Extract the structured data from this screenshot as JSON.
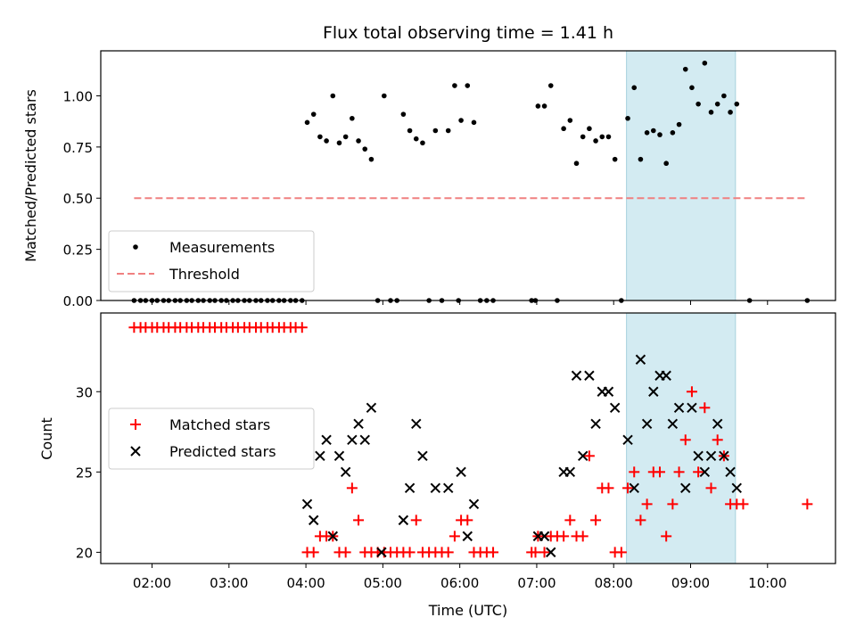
{
  "title": "Flux total observing time = 1.41 h",
  "chart_data": [
    {
      "type": "scatter",
      "ylabel": "Matched/Predicted stars",
      "xlim": [
        "01:20",
        "10:53"
      ],
      "ylim": [
        0,
        1.22
      ],
      "yticks": [
        "0.00",
        "0.25",
        "0.50",
        "0.75",
        "1.00"
      ],
      "highlight_span": [
        "08:10",
        "09:35"
      ],
      "highlight_color": "#d3ebf2",
      "legend": {
        "position": "lower-left",
        "entries": [
          "Measurements",
          "Threshold"
        ]
      },
      "series": [
        {
          "name": "Measurements",
          "color": "#000000",
          "marker": "dot",
          "points": [
            [
              "01:46",
              0
            ],
            [
              "01:51",
              0
            ],
            [
              "01:55",
              0
            ],
            [
              "02:00",
              0
            ],
            [
              "02:04",
              0
            ],
            [
              "02:09",
              0
            ],
            [
              "02:13",
              0
            ],
            [
              "02:18",
              0
            ],
            [
              "02:22",
              0
            ],
            [
              "02:27",
              0
            ],
            [
              "02:31",
              0
            ],
            [
              "02:36",
              0
            ],
            [
              "02:40",
              0
            ],
            [
              "02:45",
              0
            ],
            [
              "02:49",
              0
            ],
            [
              "02:54",
              0
            ],
            [
              "02:58",
              0
            ],
            [
              "03:03",
              0
            ],
            [
              "03:07",
              0
            ],
            [
              "03:12",
              0
            ],
            [
              "03:16",
              0
            ],
            [
              "03:21",
              0
            ],
            [
              "03:25",
              0
            ],
            [
              "03:30",
              0
            ],
            [
              "03:34",
              0
            ],
            [
              "03:39",
              0
            ],
            [
              "03:43",
              0
            ],
            [
              "03:48",
              0
            ],
            [
              "03:52",
              0
            ],
            [
              "03:57",
              0
            ],
            [
              "04:01",
              0.87
            ],
            [
              "04:06",
              0.91
            ],
            [
              "04:11",
              0.8
            ],
            [
              "04:16",
              0.78
            ],
            [
              "04:21",
              1.0
            ],
            [
              "04:26",
              0.77
            ],
            [
              "04:31",
              0.8
            ],
            [
              "04:36",
              0.89
            ],
            [
              "04:41",
              0.78
            ],
            [
              "04:46",
              0.74
            ],
            [
              "04:51",
              0.69
            ],
            [
              "04:56",
              0
            ],
            [
              "05:01",
              1.0
            ],
            [
              "05:06",
              0
            ],
            [
              "05:11",
              0
            ],
            [
              "05:16",
              0.91
            ],
            [
              "05:21",
              0.83
            ],
            [
              "05:26",
              0.79
            ],
            [
              "05:31",
              0.77
            ],
            [
              "05:41",
              0.83
            ],
            [
              "05:51",
              0.83
            ],
            [
              "05:56",
              1.05
            ],
            [
              "06:01",
              0.88
            ],
            [
              "06:06",
              1.05
            ],
            [
              "06:11",
              0.87
            ],
            [
              "05:36",
              0
            ],
            [
              "05:46",
              0
            ],
            [
              "05:59",
              0
            ],
            [
              "06:16",
              0
            ],
            [
              "06:21",
              0
            ],
            [
              "06:26",
              0
            ],
            [
              "06:56",
              0
            ],
            [
              "06:59",
              0
            ],
            [
              "07:01",
              0.95
            ],
            [
              "07:06",
              0.95
            ],
            [
              "07:11",
              1.05
            ],
            [
              "07:16",
              0
            ],
            [
              "07:21",
              0.84
            ],
            [
              "07:26",
              0.88
            ],
            [
              "07:31",
              0.67
            ],
            [
              "07:36",
              0.8
            ],
            [
              "07:41",
              0.84
            ],
            [
              "07:46",
              0.78
            ],
            [
              "07:51",
              0.8
            ],
            [
              "07:56",
              0.8
            ],
            [
              "08:01",
              0.69
            ],
            [
              "08:06",
              0
            ],
            [
              "08:11",
              0.89
            ],
            [
              "08:16",
              1.04
            ],
            [
              "08:21",
              0.69
            ],
            [
              "08:26",
              0.82
            ],
            [
              "08:31",
              0.83
            ],
            [
              "08:36",
              0.81
            ],
            [
              "08:41",
              0.67
            ],
            [
              "08:46",
              0.82
            ],
            [
              "08:51",
              0.86
            ],
            [
              "08:56",
              1.13
            ],
            [
              "09:01",
              1.04
            ],
            [
              "09:06",
              0.96
            ],
            [
              "09:11",
              1.16
            ],
            [
              "09:16",
              0.92
            ],
            [
              "09:21",
              0.96
            ],
            [
              "09:26",
              1.0
            ],
            [
              "09:31",
              0.92
            ],
            [
              "09:36",
              0.96
            ],
            [
              "09:46",
              0
            ],
            [
              "10:31",
              0
            ]
          ]
        },
        {
          "name": "Threshold",
          "color": "#f08080",
          "style": "dashed",
          "points": [
            [
              "01:46",
              0.5
            ],
            [
              "10:31",
              0.5
            ]
          ]
        }
      ]
    },
    {
      "type": "scatter",
      "xlabel": "Time (UTC)",
      "ylabel": "Count",
      "xlim": [
        "01:20",
        "10:53"
      ],
      "ylim": [
        19.3,
        34.9
      ],
      "xticks": [
        "02:00",
        "03:00",
        "04:00",
        "05:00",
        "06:00",
        "07:00",
        "08:00",
        "09:00",
        "10:00"
      ],
      "yticks": [
        "20",
        "25",
        "30"
      ],
      "highlight_span": [
        "08:10",
        "09:35"
      ],
      "highlight_color": "#d3ebf2",
      "legend": {
        "position": "center-left",
        "entries": [
          "Matched stars",
          "Predicted stars"
        ]
      },
      "series": [
        {
          "name": "Matched stars",
          "color": "#ff0000",
          "marker": "plus",
          "points": [
            [
              "01:46",
              34
            ],
            [
              "01:51",
              34
            ],
            [
              "01:55",
              34
            ],
            [
              "02:00",
              34
            ],
            [
              "02:04",
              34
            ],
            [
              "02:09",
              34
            ],
            [
              "02:13",
              34
            ],
            [
              "02:18",
              34
            ],
            [
              "02:22",
              34
            ],
            [
              "02:27",
              34
            ],
            [
              "02:31",
              34
            ],
            [
              "02:36",
              34
            ],
            [
              "02:40",
              34
            ],
            [
              "02:45",
              34
            ],
            [
              "02:49",
              34
            ],
            [
              "02:54",
              34
            ],
            [
              "02:58",
              34
            ],
            [
              "03:03",
              34
            ],
            [
              "03:07",
              34
            ],
            [
              "03:12",
              34
            ],
            [
              "03:16",
              34
            ],
            [
              "03:21",
              34
            ],
            [
              "03:25",
              34
            ],
            [
              "03:30",
              34
            ],
            [
              "03:34",
              34
            ],
            [
              "03:39",
              34
            ],
            [
              "03:43",
              34
            ],
            [
              "03:48",
              34
            ],
            [
              "03:52",
              34
            ],
            [
              "03:57",
              34
            ],
            [
              "04:01",
              20
            ],
            [
              "04:06",
              20
            ],
            [
              "04:11",
              21
            ],
            [
              "04:16",
              21
            ],
            [
              "04:21",
              21
            ],
            [
              "04:26",
              20
            ],
            [
              "04:31",
              20
            ],
            [
              "04:36",
              24
            ],
            [
              "04:41",
              22
            ],
            [
              "04:46",
              20
            ],
            [
              "04:51",
              20
            ],
            [
              "04:56",
              20
            ],
            [
              "05:01",
              20
            ],
            [
              "05:06",
              20
            ],
            [
              "05:11",
              20
            ],
            [
              "05:16",
              20
            ],
            [
              "05:21",
              20
            ],
            [
              "05:26",
              22
            ],
            [
              "05:31",
              20
            ],
            [
              "05:36",
              20
            ],
            [
              "05:41",
              20
            ],
            [
              "05:46",
              20
            ],
            [
              "05:51",
              20
            ],
            [
              "05:56",
              21
            ],
            [
              "06:01",
              22
            ],
            [
              "06:06",
              22
            ],
            [
              "06:11",
              20
            ],
            [
              "06:16",
              20
            ],
            [
              "06:21",
              20
            ],
            [
              "06:26",
              20
            ],
            [
              "06:56",
              20
            ],
            [
              "06:59",
              20
            ],
            [
              "07:01",
              21
            ],
            [
              "07:06",
              20
            ],
            [
              "07:11",
              21
            ],
            [
              "07:16",
              21
            ],
            [
              "07:21",
              21
            ],
            [
              "07:26",
              22
            ],
            [
              "07:31",
              21
            ],
            [
              "07:36",
              21
            ],
            [
              "07:41",
              26
            ],
            [
              "07:46",
              22
            ],
            [
              "07:51",
              24
            ],
            [
              "07:56",
              24
            ],
            [
              "08:01",
              20
            ],
            [
              "08:06",
              20
            ],
            [
              "08:11",
              24
            ],
            [
              "08:16",
              25
            ],
            [
              "08:21",
              22
            ],
            [
              "08:26",
              23
            ],
            [
              "08:31",
              25
            ],
            [
              "08:36",
              25
            ],
            [
              "08:41",
              21
            ],
            [
              "08:46",
              23
            ],
            [
              "08:51",
              25
            ],
            [
              "08:56",
              27
            ],
            [
              "09:01",
              30
            ],
            [
              "09:06",
              25
            ],
            [
              "09:11",
              29
            ],
            [
              "09:16",
              24
            ],
            [
              "09:21",
              27
            ],
            [
              "09:26",
              26
            ],
            [
              "09:31",
              23
            ],
            [
              "09:36",
              23
            ],
            [
              "09:41",
              23
            ],
            [
              "10:31",
              23
            ]
          ]
        },
        {
          "name": "Predicted stars",
          "color": "#000000",
          "marker": "x",
          "points": [
            [
              "04:01",
              23
            ],
            [
              "04:06",
              22
            ],
            [
              "04:11",
              26
            ],
            [
              "04:16",
              27
            ],
            [
              "04:21",
              21
            ],
            [
              "04:26",
              26
            ],
            [
              "04:31",
              25
            ],
            [
              "04:36",
              27
            ],
            [
              "04:41",
              28
            ],
            [
              "04:46",
              27
            ],
            [
              "04:51",
              29
            ],
            [
              "04:59",
              20
            ],
            [
              "05:16",
              22
            ],
            [
              "05:21",
              24
            ],
            [
              "05:26",
              28
            ],
            [
              "05:31",
              26
            ],
            [
              "05:41",
              24
            ],
            [
              "05:51",
              24
            ],
            [
              "06:01",
              25
            ],
            [
              "06:06",
              21
            ],
            [
              "06:11",
              23
            ],
            [
              "07:01",
              21
            ],
            [
              "07:06",
              21
            ],
            [
              "07:11",
              20
            ],
            [
              "07:21",
              25
            ],
            [
              "07:26",
              25
            ],
            [
              "07:31",
              31
            ],
            [
              "07:36",
              26
            ],
            [
              "07:41",
              31
            ],
            [
              "07:46",
              28
            ],
            [
              "07:51",
              30
            ],
            [
              "07:56",
              30
            ],
            [
              "08:01",
              29
            ],
            [
              "08:11",
              27
            ],
            [
              "08:16",
              24
            ],
            [
              "08:21",
              32
            ],
            [
              "08:26",
              28
            ],
            [
              "08:31",
              30
            ],
            [
              "08:36",
              31
            ],
            [
              "08:41",
              31
            ],
            [
              "08:46",
              28
            ],
            [
              "08:51",
              29
            ],
            [
              "08:56",
              24
            ],
            [
              "09:01",
              29
            ],
            [
              "09:06",
              26
            ],
            [
              "09:11",
              25
            ],
            [
              "09:16",
              26
            ],
            [
              "09:21",
              28
            ],
            [
              "09:26",
              26
            ],
            [
              "09:31",
              25
            ],
            [
              "09:36",
              24
            ]
          ]
        }
      ]
    }
  ]
}
